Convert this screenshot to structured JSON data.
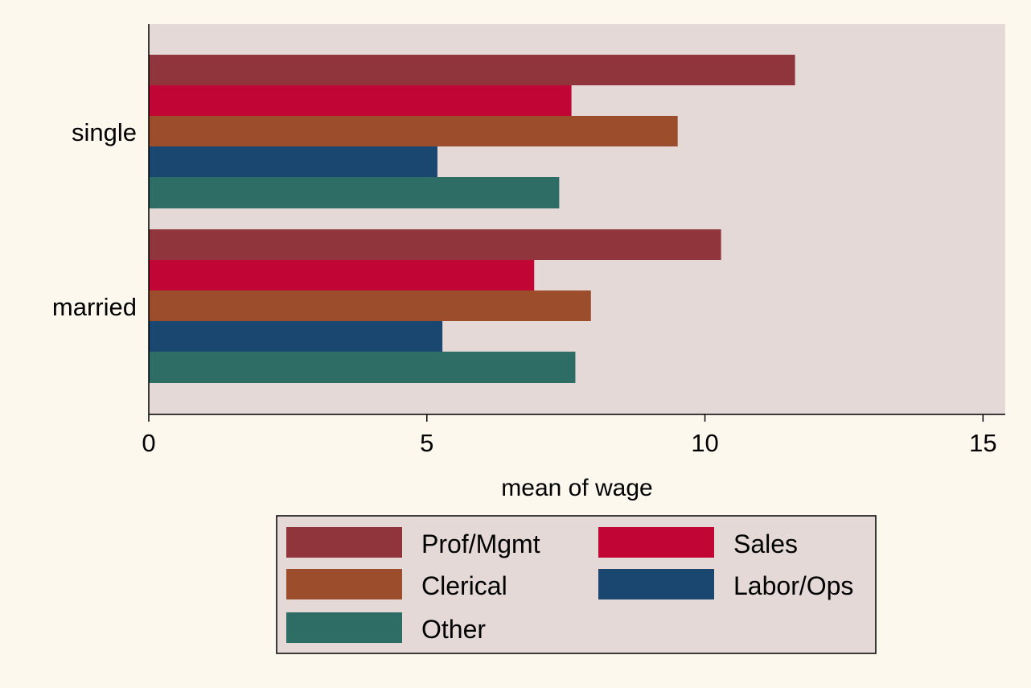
{
  "chart_data": {
    "type": "bar",
    "orientation": "horizontal",
    "categories": [
      "single",
      "married"
    ],
    "series": [
      {
        "name": "Prof/Mgmt",
        "color": "#90353b",
        "values": [
          11.62,
          10.29
        ]
      },
      {
        "name": "Sales",
        "color": "#c10534",
        "values": [
          7.6,
          6.93
        ]
      },
      {
        "name": "Clerical",
        "color": "#9c4d2b",
        "values": [
          9.51,
          7.95
        ]
      },
      {
        "name": "Labor/Ops",
        "color": "#1a476f",
        "values": [
          5.19,
          5.28
        ]
      },
      {
        "name": "Other",
        "color": "#2d6d66",
        "values": [
          7.38,
          7.67
        ]
      }
    ],
    "xlabel": "mean of wage",
    "xlim": [
      0,
      15.4
    ],
    "xticks": [
      0,
      5,
      10,
      15
    ],
    "xtick_labels": [
      "0",
      "5",
      "10",
      "15"
    ],
    "grid": false,
    "legend_position": "bottom",
    "plot_background": "#e5d9d8",
    "page_background": "#fdf8ee"
  }
}
